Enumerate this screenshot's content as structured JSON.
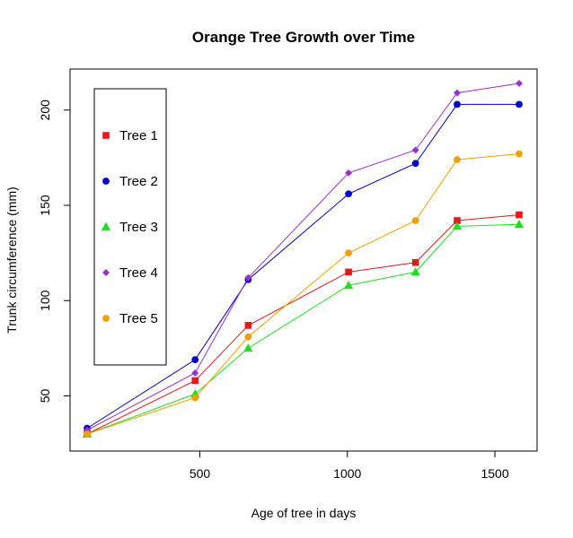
{
  "chart_data": {
    "type": "line",
    "title": "Orange Tree Growth over Time",
    "xlabel": "Age of tree in days",
    "ylabel": "Trunk circumference (mm)",
    "xlim": [
      118,
      1582
    ],
    "ylim": [
      30,
      214
    ],
    "xticks": [
      500,
      1000,
      1500
    ],
    "yticks": [
      50,
      100,
      150,
      200
    ],
    "legend_position": "top-left",
    "x": [
      118,
      484,
      664,
      1004,
      1231,
      1372,
      1582
    ],
    "series": [
      {
        "name": "Tree 1",
        "color": "#e31a1c",
        "marker": "square",
        "values": [
          30,
          58,
          87,
          115,
          120,
          142,
          145
        ]
      },
      {
        "name": "Tree 2",
        "color": "#0000cd",
        "marker": "circle",
        "values": [
          33,
          69,
          111,
          156,
          172,
          203,
          203
        ]
      },
      {
        "name": "Tree 3",
        "color": "#22dd22",
        "marker": "triangle",
        "values": [
          30,
          51,
          75,
          108,
          115,
          139,
          140
        ]
      },
      {
        "name": "Tree 4",
        "color": "#9932cc",
        "marker": "diamond",
        "values": [
          32,
          62,
          112,
          167,
          179,
          209,
          214
        ]
      },
      {
        "name": "Tree 5",
        "color": "#f0a000",
        "marker": "circle",
        "values": [
          30,
          49,
          81,
          125,
          142,
          174,
          177
        ]
      }
    ]
  }
}
